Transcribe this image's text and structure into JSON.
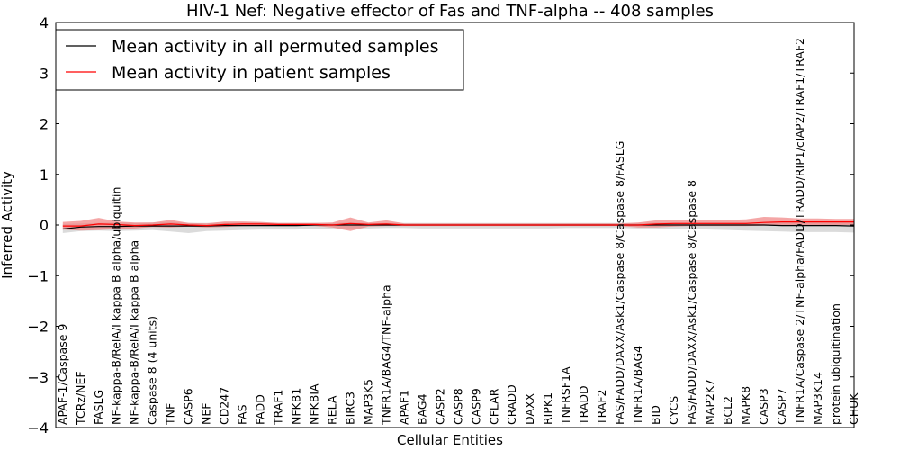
{
  "chart_data": {
    "type": "line",
    "title": "HIV-1 Nef: Negative effector of Fas and TNF-alpha -- 408 samples",
    "xlabel": "Cellular Entities",
    "ylabel": "Inferred Activity",
    "ylim": [
      -4,
      4
    ],
    "yticks": [
      -4,
      -3,
      -2,
      -1,
      0,
      1,
      2,
      3,
      4
    ],
    "ytick_labels": [
      "−4",
      "−3",
      "−2",
      "−1",
      "0",
      "1",
      "2",
      "3",
      "4"
    ],
    "legend_position": "upper-left",
    "categories": [
      "APAF-1/Caspase 9",
      "TCRz/NEF",
      "FASLG",
      "NF-kappa-B/RelA/I kappa B alpha/ubiquitin",
      "NF-kappa-B/RelA/I kappa B alpha",
      "Caspase 8 (4 units)",
      "TNF",
      "CASP6",
      "NEF",
      "CD247",
      "FAS",
      "FADD",
      "TRAF1",
      "NFKB1",
      "NFKBIA",
      "RELA",
      "BIRC3",
      "MAP3K5",
      "TNFR1A/BAG4/TNF-alpha",
      "APAF1",
      "BAG4",
      "CASP2",
      "CASP8",
      "CASP9",
      "CFLAR",
      "CRADD",
      "DAXX",
      "RIPK1",
      "TNFRSF1A",
      "TRADD",
      "TRAF2",
      "FAS/FADD/DAXX/Ask1/Caspase 8/Caspase 8/FASLG",
      "TNFR1A/BAG4",
      "BID",
      "CYCS",
      "FAS/FADD/DAXX/Ask1/Caspase 8/Caspase 8",
      "MAP2K7",
      "BCL2",
      "MAPK8",
      "CASP3",
      "CASP7",
      "TNFR1A/Caspase 2/TNF-alpha/FADD/TRADD/RIP1/cIAP2/TRAF1/TRAF2",
      "MAP3K14",
      "protein ubiquitination",
      "CHUK"
    ],
    "series": [
      {
        "name": "Mean activity in all permuted samples",
        "color": "#000000",
        "band_color": "#b0b0b0",
        "values": [
          -0.08,
          -0.04,
          -0.03,
          -0.03,
          -0.02,
          -0.02,
          -0.02,
          -0.02,
          -0.02,
          -0.01,
          -0.01,
          -0.01,
          -0.01,
          -0.01,
          0,
          0,
          0,
          0,
          0,
          0,
          0,
          0,
          0,
          0,
          0,
          0,
          0,
          0,
          0,
          0,
          0,
          0,
          0,
          0,
          0,
          0,
          0,
          0,
          0,
          0,
          -0.01,
          -0.01,
          -0.01,
          -0.01,
          -0.02
        ],
        "lower": [
          -0.16,
          -0.12,
          -0.11,
          -0.12,
          -0.11,
          -0.1,
          -0.13,
          -0.16,
          -0.12,
          -0.11,
          -0.1,
          -0.09,
          -0.09,
          -0.09,
          -0.08,
          -0.07,
          -0.07,
          -0.07,
          -0.06,
          -0.06,
          -0.07,
          -0.07,
          -0.07,
          -0.07,
          -0.07,
          -0.07,
          -0.07,
          -0.07,
          -0.06,
          -0.06,
          -0.06,
          -0.06,
          -0.07,
          -0.07,
          -0.08,
          -0.08,
          -0.09,
          -0.1,
          -0.11,
          -0.12,
          -0.13,
          -0.14,
          -0.14,
          -0.14,
          -0.15
        ],
        "upper": [
          0.02,
          0.03,
          0.04,
          0.05,
          0.04,
          0.05,
          0.06,
          0.04,
          0.04,
          0.05,
          0.05,
          0.05,
          0.04,
          0.04,
          0.04,
          0.04,
          0.05,
          0.04,
          0.04,
          0.04,
          0.04,
          0.04,
          0.04,
          0.04,
          0.04,
          0.04,
          0.04,
          0.04,
          0.04,
          0.04,
          0.04,
          0.04,
          0.04,
          0.05,
          0.05,
          0.05,
          0.05,
          0.05,
          0.05,
          0.05,
          0.06,
          0.06,
          0.06,
          0.06,
          0.06
        ]
      },
      {
        "name": "Mean activity in patient samples",
        "color": "#ff0000",
        "band_color": "#f08080",
        "values": [
          -0.02,
          -0.02,
          0.02,
          0.01,
          -0.01,
          0,
          0.02,
          0,
          -0.01,
          0.01,
          0.02,
          0.02,
          0.01,
          0.01,
          0.01,
          0,
          0.03,
          0.01,
          0.02,
          0,
          0,
          0,
          0,
          0,
          0,
          0,
          0,
          0,
          0,
          0,
          0,
          0,
          0,
          0.02,
          0.03,
          0.03,
          0.03,
          0.03,
          0.03,
          0.05,
          0.06,
          0.06,
          0.06,
          0.06,
          0.06
        ],
        "lower": [
          -0.09,
          -0.11,
          -0.1,
          -0.08,
          -0.07,
          -0.04,
          -0.05,
          -0.03,
          -0.05,
          -0.04,
          -0.02,
          -0.01,
          -0.02,
          -0.02,
          -0.02,
          -0.05,
          -0.12,
          -0.03,
          -0.02,
          -0.02,
          -0.02,
          -0.02,
          -0.02,
          -0.02,
          -0.02,
          -0.02,
          -0.02,
          -0.02,
          -0.02,
          -0.02,
          -0.02,
          -0.02,
          -0.05,
          -0.05,
          -0.03,
          -0.02,
          -0.02,
          -0.02,
          -0.02,
          -0.01,
          0,
          0,
          0,
          0,
          0
        ],
        "upper": [
          0.06,
          0.08,
          0.14,
          0.07,
          0.05,
          0.05,
          0.1,
          0.04,
          0.03,
          0.07,
          0.07,
          0.06,
          0.04,
          0.04,
          0.04,
          0.05,
          0.15,
          0.05,
          0.09,
          0.03,
          0.03,
          0.03,
          0.03,
          0.03,
          0.03,
          0.03,
          0.03,
          0.03,
          0.03,
          0.03,
          0.03,
          0.03,
          0.05,
          0.09,
          0.1,
          0.1,
          0.1,
          0.1,
          0.11,
          0.16,
          0.15,
          0.13,
          0.13,
          0.12,
          0.12
        ]
      }
    ]
  }
}
